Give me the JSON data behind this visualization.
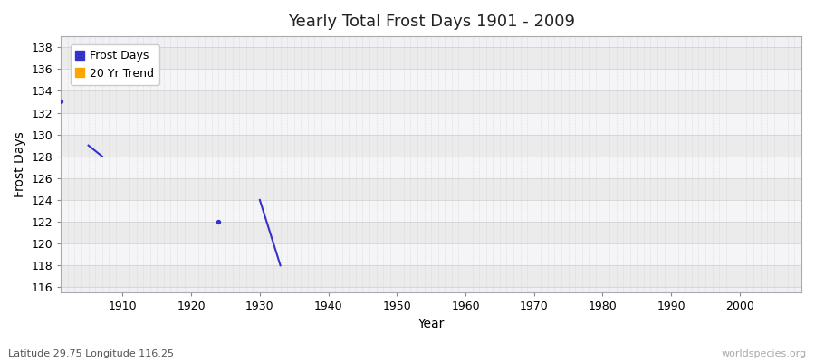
{
  "title": "Yearly Total Frost Days 1901 - 2009",
  "xlabel": "Year",
  "ylabel": "Frost Days",
  "subtitle": "Latitude 29.75 Longitude 116.25",
  "watermark": "worldspecies.org",
  "xlim": [
    1901,
    2009
  ],
  "ylim": [
    115.5,
    139
  ],
  "yticks": [
    116,
    118,
    120,
    122,
    124,
    126,
    128,
    130,
    132,
    134,
    136,
    138
  ],
  "xticks": [
    1910,
    1920,
    1930,
    1940,
    1950,
    1960,
    1970,
    1980,
    1990,
    2000
  ],
  "bg_color": "#ffffff",
  "plot_bg_color": "#f0f0f5",
  "frost_days_color": "#3333cc",
  "trend_color": "#ffa500",
  "frost_scatter_x": [
    1901,
    1924
  ],
  "frost_scatter_y": [
    133,
    122
  ],
  "frost_line_segments": [
    {
      "x": [
        1905,
        1907
      ],
      "y": [
        129,
        128
      ]
    },
    {
      "x": [
        1930,
        1933
      ],
      "y": [
        124,
        118
      ]
    }
  ],
  "legend_entries": [
    "Frost Days",
    "20 Yr Trend"
  ],
  "legend_colors": [
    "#3333cc",
    "#ffa500"
  ],
  "band_colors": [
    "#ebebeb",
    "#f5f5f8"
  ],
  "minor_grid_color": "#cccccc",
  "major_grid_color": "#cccccc"
}
